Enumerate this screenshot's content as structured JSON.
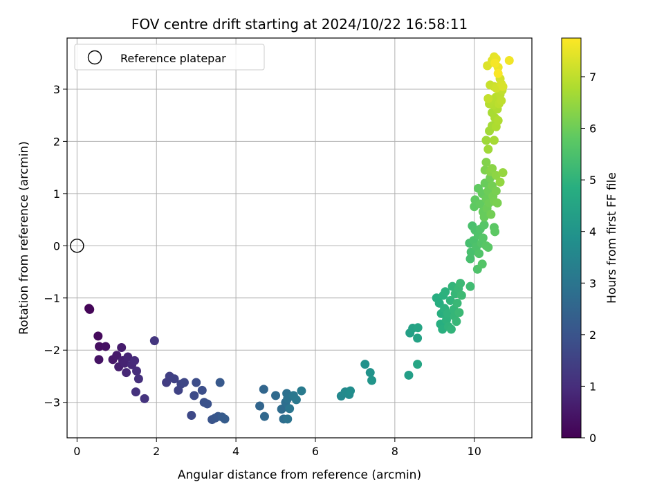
{
  "chart_data": {
    "type": "scatter",
    "title": "FOV centre drift starting at 2024/10/22 16:58:11",
    "xlabel": "Angular distance from reference (arcmin)",
    "ylabel": "Rotation from reference (arcmin)",
    "xlim": [
      -0.25,
      11.45
    ],
    "ylim": [
      -3.68,
      3.98
    ],
    "x_ticks": [
      0,
      2,
      4,
      6,
      8,
      10
    ],
    "y_ticks": [
      -3,
      -2,
      -1,
      0,
      1,
      2,
      3
    ],
    "grid": true,
    "legend": {
      "placement": "top-left",
      "entries": [
        "Reference platepar"
      ]
    },
    "reference": {
      "x": 0,
      "y": 0,
      "label": "Reference platepar"
    },
    "colorbar": {
      "label": "Hours from first FF file",
      "colormap": "viridis",
      "range": [
        0,
        7.75
      ],
      "ticks": [
        0,
        1,
        2,
        3,
        4,
        5,
        6,
        7
      ]
    },
    "points": [
      {
        "x": 0.3,
        "y": -1.2,
        "h": 0.05
      },
      {
        "x": 0.32,
        "y": -1.22,
        "h": 0.1
      },
      {
        "x": 0.53,
        "y": -1.73,
        "h": 0.2
      },
      {
        "x": 0.56,
        "y": -1.93,
        "h": 0.3
      },
      {
        "x": 0.72,
        "y": -1.93,
        "h": 0.35
      },
      {
        "x": 0.55,
        "y": -2.18,
        "h": 0.4
      },
      {
        "x": 0.9,
        "y": -2.18,
        "h": 0.5
      },
      {
        "x": 1.0,
        "y": -2.1,
        "h": 0.55
      },
      {
        "x": 1.12,
        "y": -1.95,
        "h": 0.6
      },
      {
        "x": 1.05,
        "y": -2.32,
        "h": 0.65
      },
      {
        "x": 1.15,
        "y": -2.2,
        "h": 0.7
      },
      {
        "x": 1.2,
        "y": -2.25,
        "h": 0.75
      },
      {
        "x": 1.28,
        "y": -2.13,
        "h": 0.8
      },
      {
        "x": 1.24,
        "y": -2.43,
        "h": 0.85
      },
      {
        "x": 1.38,
        "y": -2.28,
        "h": 0.9
      },
      {
        "x": 1.45,
        "y": -2.2,
        "h": 0.95
      },
      {
        "x": 1.5,
        "y": -2.4,
        "h": 1.0
      },
      {
        "x": 1.55,
        "y": -2.55,
        "h": 1.05
      },
      {
        "x": 1.48,
        "y": -2.8,
        "h": 1.1
      },
      {
        "x": 1.7,
        "y": -2.93,
        "h": 1.15
      },
      {
        "x": 1.95,
        "y": -1.82,
        "h": 1.2
      },
      {
        "x": 2.25,
        "y": -2.62,
        "h": 1.4
      },
      {
        "x": 2.33,
        "y": -2.5,
        "h": 1.45
      },
      {
        "x": 2.45,
        "y": -2.55,
        "h": 1.5
      },
      {
        "x": 2.55,
        "y": -2.77,
        "h": 1.55
      },
      {
        "x": 2.62,
        "y": -2.65,
        "h": 1.6
      },
      {
        "x": 2.7,
        "y": -2.62,
        "h": 1.65
      },
      {
        "x": 2.88,
        "y": -3.25,
        "h": 1.7
      },
      {
        "x": 2.95,
        "y": -2.87,
        "h": 1.75
      },
      {
        "x": 3.0,
        "y": -2.62,
        "h": 1.8
      },
      {
        "x": 3.15,
        "y": -2.77,
        "h": 1.85
      },
      {
        "x": 3.2,
        "y": -3.0,
        "h": 1.9
      },
      {
        "x": 3.28,
        "y": -3.03,
        "h": 1.95
      },
      {
        "x": 3.4,
        "y": -3.33,
        "h": 2.0
      },
      {
        "x": 3.48,
        "y": -3.3,
        "h": 2.05
      },
      {
        "x": 3.55,
        "y": -3.27,
        "h": 2.1
      },
      {
        "x": 3.6,
        "y": -2.62,
        "h": 2.15
      },
      {
        "x": 3.65,
        "y": -3.28,
        "h": 2.2
      },
      {
        "x": 3.72,
        "y": -3.32,
        "h": 2.25
      },
      {
        "x": 4.6,
        "y": -3.07,
        "h": 2.5
      },
      {
        "x": 4.7,
        "y": -2.75,
        "h": 2.55
      },
      {
        "x": 4.72,
        "y": -3.27,
        "h": 2.6
      },
      {
        "x": 5.0,
        "y": -2.87,
        "h": 2.65
      },
      {
        "x": 5.15,
        "y": -3.13,
        "h": 2.7
      },
      {
        "x": 5.2,
        "y": -3.32,
        "h": 2.75
      },
      {
        "x": 5.25,
        "y": -3.0,
        "h": 2.8
      },
      {
        "x": 5.28,
        "y": -2.83,
        "h": 2.85
      },
      {
        "x": 5.3,
        "y": -2.93,
        "h": 2.9
      },
      {
        "x": 5.3,
        "y": -3.32,
        "h": 2.95
      },
      {
        "x": 5.35,
        "y": -3.12,
        "h": 3.0
      },
      {
        "x": 5.45,
        "y": -2.87,
        "h": 3.05
      },
      {
        "x": 5.52,
        "y": -2.95,
        "h": 3.1
      },
      {
        "x": 5.65,
        "y": -2.78,
        "h": 3.15
      },
      {
        "x": 6.65,
        "y": -2.88,
        "h": 3.6
      },
      {
        "x": 6.75,
        "y": -2.8,
        "h": 3.65
      },
      {
        "x": 6.85,
        "y": -2.85,
        "h": 3.7
      },
      {
        "x": 6.88,
        "y": -2.78,
        "h": 3.75
      },
      {
        "x": 7.25,
        "y": -2.27,
        "h": 3.9
      },
      {
        "x": 7.38,
        "y": -2.43,
        "h": 3.95
      },
      {
        "x": 7.42,
        "y": -2.58,
        "h": 4.0
      },
      {
        "x": 8.35,
        "y": -2.48,
        "h": 4.3
      },
      {
        "x": 8.38,
        "y": -1.67,
        "h": 4.35
      },
      {
        "x": 8.45,
        "y": -1.58,
        "h": 4.4
      },
      {
        "x": 8.57,
        "y": -1.77,
        "h": 4.45
      },
      {
        "x": 8.58,
        "y": -1.57,
        "h": 4.5
      },
      {
        "x": 8.57,
        "y": -2.27,
        "h": 4.55
      },
      {
        "x": 9.05,
        "y": -1.0,
        "h": 4.8
      },
      {
        "x": 9.12,
        "y": -1.1,
        "h": 4.82
      },
      {
        "x": 9.15,
        "y": -1.5,
        "h": 4.84
      },
      {
        "x": 9.17,
        "y": -1.3,
        "h": 4.86
      },
      {
        "x": 9.2,
        "y": -1.6,
        "h": 4.88
      },
      {
        "x": 9.22,
        "y": -0.95,
        "h": 4.9
      },
      {
        "x": 9.25,
        "y": -1.2,
        "h": 4.92
      },
      {
        "x": 9.27,
        "y": -0.88,
        "h": 4.94
      },
      {
        "x": 9.3,
        "y": -1.42,
        "h": 4.96
      },
      {
        "x": 9.33,
        "y": -1.3,
        "h": 4.98
      },
      {
        "x": 9.35,
        "y": -1.55,
        "h": 5.0
      },
      {
        "x": 9.4,
        "y": -1.05,
        "h": 5.02
      },
      {
        "x": 9.42,
        "y": -1.6,
        "h": 5.04
      },
      {
        "x": 9.45,
        "y": -0.78,
        "h": 5.06
      },
      {
        "x": 9.48,
        "y": -1.22,
        "h": 5.08
      },
      {
        "x": 9.5,
        "y": -1.35,
        "h": 5.1
      },
      {
        "x": 9.52,
        "y": -0.92,
        "h": 5.12
      },
      {
        "x": 9.55,
        "y": -1.45,
        "h": 5.14
      },
      {
        "x": 9.57,
        "y": -1.1,
        "h": 5.16
      },
      {
        "x": 9.6,
        "y": -0.82,
        "h": 5.18
      },
      {
        "x": 9.62,
        "y": -1.28,
        "h": 5.2
      },
      {
        "x": 9.65,
        "y": -0.72,
        "h": 5.22
      },
      {
        "x": 9.68,
        "y": -0.95,
        "h": 5.24
      },
      {
        "x": 9.9,
        "y": -0.78,
        "h": 5.3
      },
      {
        "x": 9.88,
        "y": 0.05,
        "h": 5.4
      },
      {
        "x": 9.9,
        "y": -0.25,
        "h": 5.42
      },
      {
        "x": 9.92,
        "y": -0.12,
        "h": 5.44
      },
      {
        "x": 9.95,
        "y": 0.38,
        "h": 5.46
      },
      {
        "x": 9.98,
        "y": 0.1,
        "h": 5.48
      },
      {
        "x": 10.02,
        "y": 0.3,
        "h": 5.5
      },
      {
        "x": 10.05,
        "y": -0.02,
        "h": 5.52
      },
      {
        "x": 10.08,
        "y": -0.45,
        "h": 5.54
      },
      {
        "x": 10.1,
        "y": 0.2,
        "h": 5.56
      },
      {
        "x": 10.12,
        "y": -0.15,
        "h": 5.58
      },
      {
        "x": 10.15,
        "y": 0.32,
        "h": 5.6
      },
      {
        "x": 10.18,
        "y": 0.05,
        "h": 5.62
      },
      {
        "x": 10.2,
        "y": -0.35,
        "h": 5.64
      },
      {
        "x": 10.22,
        "y": 0.15,
        "h": 5.66
      },
      {
        "x": 10.25,
        "y": 0.4,
        "h": 5.68
      },
      {
        "x": 10.3,
        "y": 0.0,
        "h": 5.7
      },
      {
        "x": 10.35,
        "y": -0.03,
        "h": 5.72
      },
      {
        "x": 10.5,
        "y": 0.35,
        "h": 5.75
      },
      {
        "x": 10.52,
        "y": 0.27,
        "h": 5.78
      },
      {
        "x": 10.0,
        "y": 0.75,
        "h": 5.8
      },
      {
        "x": 10.02,
        "y": 0.88,
        "h": 5.82
      },
      {
        "x": 10.1,
        "y": 1.1,
        "h": 5.84
      },
      {
        "x": 10.15,
        "y": 0.8,
        "h": 5.86
      },
      {
        "x": 10.2,
        "y": 1.0,
        "h": 5.88
      },
      {
        "x": 10.22,
        "y": 0.65,
        "h": 5.9
      },
      {
        "x": 10.25,
        "y": 0.55,
        "h": 5.92
      },
      {
        "x": 10.27,
        "y": 1.2,
        "h": 5.94
      },
      {
        "x": 10.3,
        "y": 0.9,
        "h": 5.96
      },
      {
        "x": 10.32,
        "y": 0.72,
        "h": 5.98
      },
      {
        "x": 10.35,
        "y": 1.05,
        "h": 6.0
      },
      {
        "x": 10.37,
        "y": 0.82,
        "h": 6.02
      },
      {
        "x": 10.4,
        "y": 1.3,
        "h": 6.04
      },
      {
        "x": 10.42,
        "y": 0.6,
        "h": 6.06
      },
      {
        "x": 10.45,
        "y": 1.15,
        "h": 6.08
      },
      {
        "x": 10.47,
        "y": 0.95,
        "h": 6.1
      },
      {
        "x": 10.5,
        "y": 0.85,
        "h": 6.12
      },
      {
        "x": 10.55,
        "y": 1.05,
        "h": 6.14
      },
      {
        "x": 10.58,
        "y": 0.82,
        "h": 6.16
      },
      {
        "x": 10.27,
        "y": 1.45,
        "h": 6.2
      },
      {
        "x": 10.3,
        "y": 1.6,
        "h": 6.25
      },
      {
        "x": 10.4,
        "y": 1.42,
        "h": 6.3
      },
      {
        "x": 10.45,
        "y": 1.48,
        "h": 6.35
      },
      {
        "x": 10.55,
        "y": 1.35,
        "h": 6.4
      },
      {
        "x": 10.65,
        "y": 1.22,
        "h": 6.45
      },
      {
        "x": 10.72,
        "y": 1.4,
        "h": 6.5
      },
      {
        "x": 10.3,
        "y": 2.02,
        "h": 6.6
      },
      {
        "x": 10.35,
        "y": 1.85,
        "h": 6.62
      },
      {
        "x": 10.38,
        "y": 2.2,
        "h": 6.65
      },
      {
        "x": 10.45,
        "y": 2.3,
        "h": 6.68
      },
      {
        "x": 10.5,
        "y": 2.02,
        "h": 6.7
      },
      {
        "x": 10.45,
        "y": 2.55,
        "h": 6.72
      },
      {
        "x": 10.52,
        "y": 2.45,
        "h": 6.75
      },
      {
        "x": 10.55,
        "y": 2.28,
        "h": 6.78
      },
      {
        "x": 10.58,
        "y": 2.62,
        "h": 6.8
      },
      {
        "x": 10.6,
        "y": 2.4,
        "h": 6.82
      },
      {
        "x": 10.48,
        "y": 2.7,
        "h": 6.85
      },
      {
        "x": 10.38,
        "y": 2.72,
        "h": 6.88
      },
      {
        "x": 10.42,
        "y": 2.8,
        "h": 6.9
      },
      {
        "x": 10.55,
        "y": 2.85,
        "h": 6.92
      },
      {
        "x": 10.62,
        "y": 2.72,
        "h": 6.95
      },
      {
        "x": 10.65,
        "y": 2.9,
        "h": 6.98
      },
      {
        "x": 10.68,
        "y": 2.78,
        "h": 7.0
      },
      {
        "x": 10.7,
        "y": 2.98,
        "h": 7.02
      },
      {
        "x": 10.35,
        "y": 2.82,
        "h": 7.05
      },
      {
        "x": 10.4,
        "y": 3.08,
        "h": 7.1
      },
      {
        "x": 10.5,
        "y": 3.05,
        "h": 7.15
      },
      {
        "x": 10.55,
        "y": 3.02,
        "h": 7.2
      },
      {
        "x": 10.65,
        "y": 3.2,
        "h": 7.25
      },
      {
        "x": 10.68,
        "y": 3.1,
        "h": 7.28
      },
      {
        "x": 10.72,
        "y": 3.05,
        "h": 7.3
      },
      {
        "x": 10.33,
        "y": 3.45,
        "h": 7.35
      },
      {
        "x": 10.45,
        "y": 3.55,
        "h": 7.4
      },
      {
        "x": 10.5,
        "y": 3.62,
        "h": 7.45
      },
      {
        "x": 10.55,
        "y": 3.58,
        "h": 7.5
      },
      {
        "x": 10.6,
        "y": 3.42,
        "h": 7.55
      },
      {
        "x": 10.88,
        "y": 3.55,
        "h": 7.6
      },
      {
        "x": 10.52,
        "y": 3.5,
        "h": 7.65
      },
      {
        "x": 10.6,
        "y": 3.3,
        "h": 7.7
      }
    ]
  }
}
